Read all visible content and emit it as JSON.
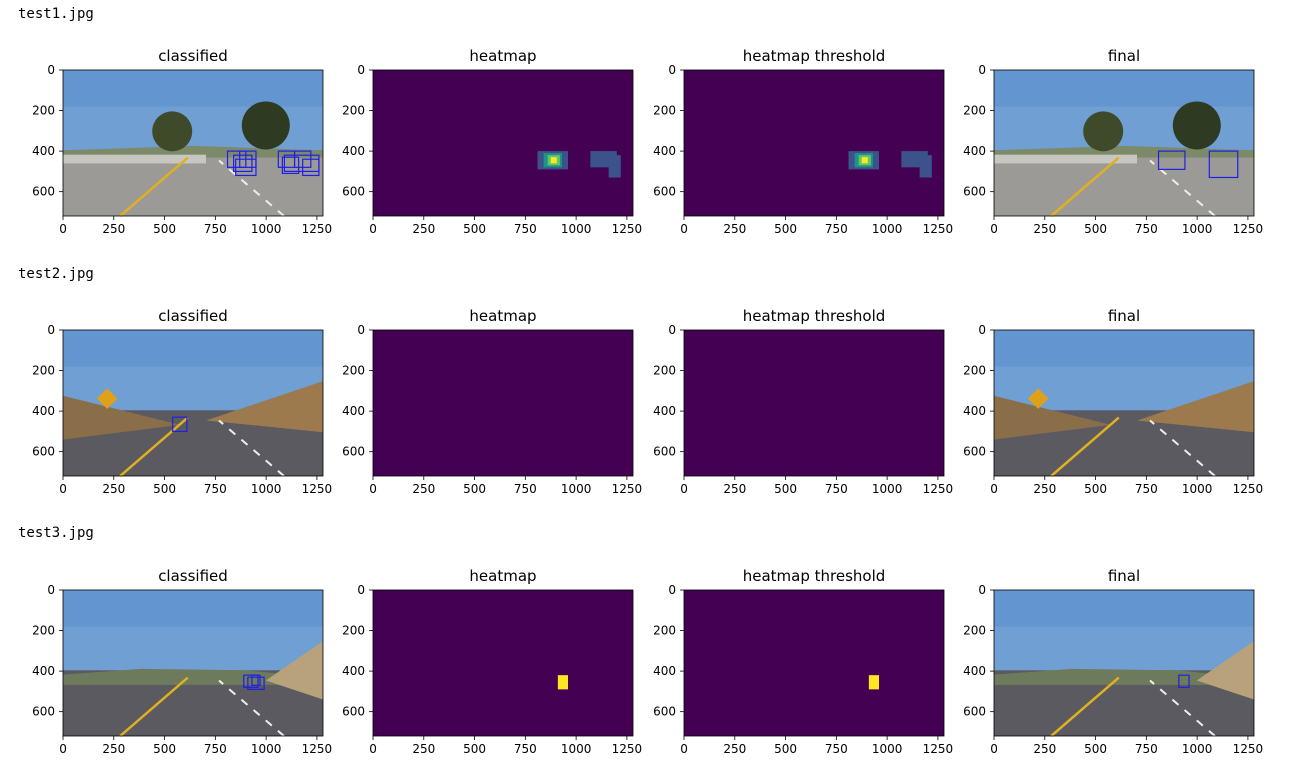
{
  "rows": [
    {
      "file": "test1.jpg",
      "panels": [
        "classified",
        "heatmap",
        "heatmap threshold",
        "final"
      ]
    },
    {
      "file": "test2.jpg",
      "panels": [
        "classified",
        "heatmap",
        "heatmap threshold",
        "final"
      ]
    },
    {
      "file": "test3.jpg",
      "panels": [
        "classified",
        "heatmap",
        "heatmap threshold",
        "final"
      ]
    }
  ],
  "chart_data": {
    "type": "heatmap",
    "image_width": 1280,
    "image_height": 720,
    "xticks": [
      0,
      250,
      500,
      750,
      1000,
      1250
    ],
    "yticks": [
      0,
      200,
      400,
      600
    ],
    "colors": {
      "heat_bg": "#440154",
      "heat_low": "#3b528b",
      "heat_mid": "#21918c",
      "heat_high": "#5ec962",
      "heat_max": "#fde725",
      "box": "#1f1fe6"
    },
    "frames": [
      {
        "file": "test1.jpg",
        "classified_boxes": [
          [
            810,
            400,
            900,
            480
          ],
          [
            840,
            420,
            930,
            500
          ],
          [
            870,
            400,
            950,
            480
          ],
          [
            850,
            440,
            950,
            520
          ],
          [
            1060,
            400,
            1140,
            480
          ],
          [
            1080,
            430,
            1160,
            510
          ],
          [
            1140,
            400,
            1220,
            480
          ],
          [
            1180,
            440,
            1260,
            520
          ],
          [
            1090,
            420,
            1260,
            500
          ]
        ],
        "heatmap_blobs": [
          {
            "x0": 810,
            "y0": 400,
            "x1": 960,
            "y1": 490,
            "level": "low"
          },
          {
            "x0": 840,
            "y0": 410,
            "x1": 930,
            "y1": 480,
            "level": "mid"
          },
          {
            "x0": 860,
            "y0": 420,
            "x1": 920,
            "y1": 470,
            "level": "high"
          },
          {
            "x0": 875,
            "y0": 430,
            "x1": 905,
            "y1": 460,
            "level": "max"
          },
          {
            "x0": 1070,
            "y0": 400,
            "x1": 1200,
            "y1": 480,
            "level": "low"
          },
          {
            "x0": 1160,
            "y0": 420,
            "x1": 1220,
            "y1": 530,
            "level": "low"
          }
        ],
        "threshold_blobs": [
          {
            "x0": 810,
            "y0": 400,
            "x1": 960,
            "y1": 490,
            "level": "low"
          },
          {
            "x0": 840,
            "y0": 410,
            "x1": 930,
            "y1": 480,
            "level": "mid"
          },
          {
            "x0": 860,
            "y0": 420,
            "x1": 920,
            "y1": 470,
            "level": "high"
          },
          {
            "x0": 875,
            "y0": 430,
            "x1": 905,
            "y1": 460,
            "level": "max"
          },
          {
            "x0": 1070,
            "y0": 400,
            "x1": 1200,
            "y1": 480,
            "level": "low"
          },
          {
            "x0": 1160,
            "y0": 420,
            "x1": 1220,
            "y1": 530,
            "level": "low"
          }
        ],
        "final_boxes": [
          [
            810,
            400,
            940,
            490
          ],
          [
            1060,
            400,
            1200,
            530
          ]
        ]
      },
      {
        "file": "test2.jpg",
        "classified_boxes": [
          [
            540,
            430,
            610,
            500
          ]
        ],
        "heatmap_blobs": [],
        "threshold_blobs": [],
        "final_boxes": []
      },
      {
        "file": "test3.jpg",
        "classified_boxes": [
          [
            890,
            420,
            960,
            480
          ],
          [
            910,
            430,
            990,
            490
          ],
          [
            930,
            420,
            970,
            470
          ]
        ],
        "heatmap_blobs": [
          {
            "x0": 910,
            "y0": 420,
            "x1": 960,
            "y1": 490,
            "level": "max"
          }
        ],
        "threshold_blobs": [
          {
            "x0": 910,
            "y0": 420,
            "x1": 960,
            "y1": 490,
            "level": "max"
          }
        ],
        "final_boxes": [
          [
            910,
            420,
            960,
            480
          ]
        ]
      }
    ]
  }
}
